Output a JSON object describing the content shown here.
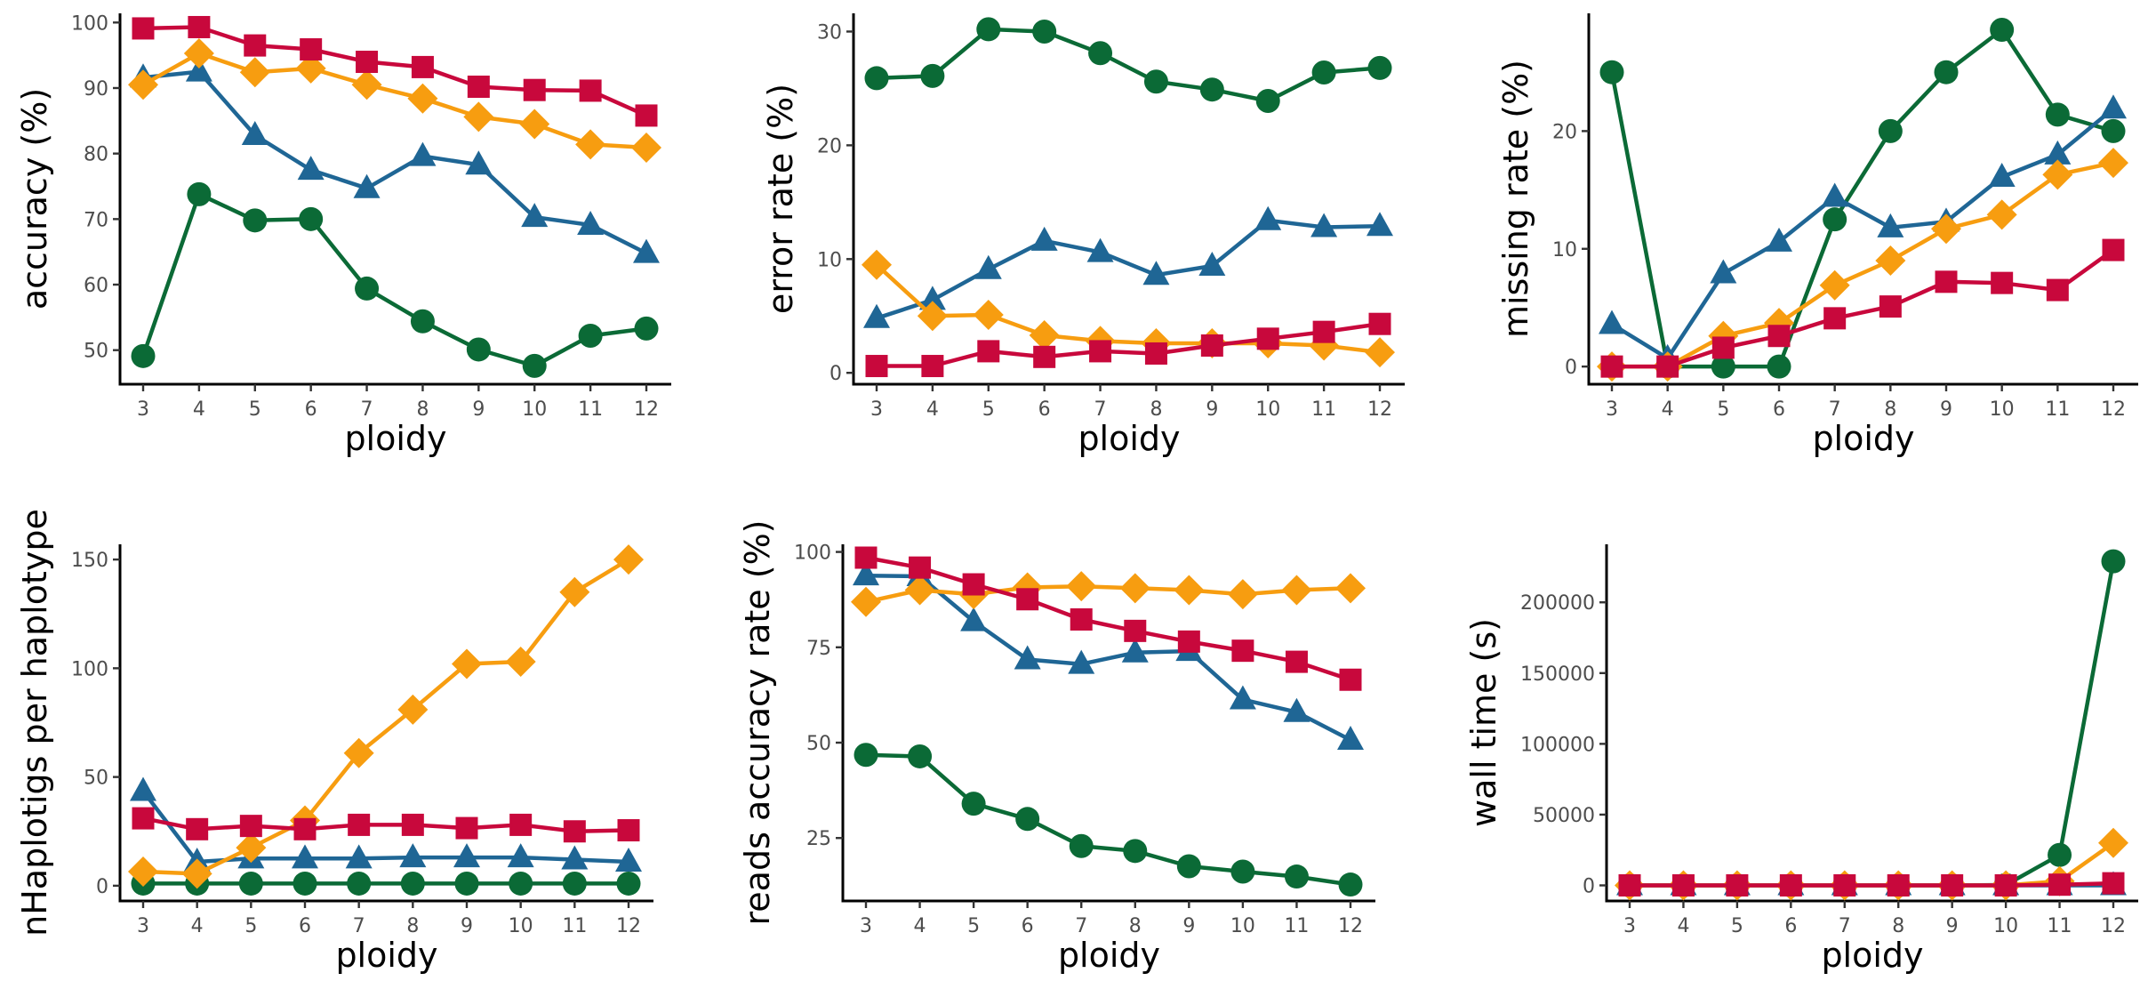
{
  "colors": {
    "green": "#0b6a36",
    "blue": "#1f6695",
    "orange": "#f79d10",
    "red": "#c8083c"
  },
  "chart_data": [
    {
      "type": "line",
      "xlabel": "ploidy",
      "ylabel": "accuracy  (%)",
      "x": [
        3,
        4,
        5,
        6,
        7,
        8,
        9,
        10,
        11,
        12
      ],
      "ylim": [
        44.8,
        101.4
      ],
      "yticks": [
        50,
        60,
        70,
        80,
        90,
        100
      ],
      "series": [
        {
          "color": "green",
          "marker": "circle",
          "values": [
            49.1,
            73.8,
            69.8,
            70.0,
            59.4,
            54.4,
            50.1,
            47.6,
            52.2,
            53.3
          ]
        },
        {
          "color": "blue",
          "marker": "triangle",
          "values": [
            91.6,
            92.5,
            82.8,
            77.5,
            74.7,
            79.6,
            78.3,
            70.3,
            69.1,
            64.8
          ]
        },
        {
          "color": "orange",
          "marker": "diamond",
          "values": [
            90.5,
            95.3,
            92.4,
            93.0,
            90.5,
            88.4,
            85.6,
            84.5,
            81.4,
            80.9
          ]
        },
        {
          "color": "red",
          "marker": "square",
          "values": [
            99.1,
            99.3,
            96.5,
            95.9,
            94.0,
            93.2,
            90.2,
            89.7,
            89.6,
            85.8
          ]
        }
      ]
    },
    {
      "type": "line",
      "xlabel": "ploidy",
      "ylabel": "error rate  (%)",
      "x": [
        3,
        4,
        5,
        6,
        7,
        8,
        9,
        10,
        11,
        12
      ],
      "ylim": [
        -1.0,
        31.6
      ],
      "yticks": [
        0,
        10,
        20,
        30
      ],
      "series": [
        {
          "color": "green",
          "marker": "circle",
          "values": [
            25.9,
            26.1,
            30.2,
            30.0,
            28.1,
            25.6,
            24.9,
            23.9,
            26.4,
            26.8
          ]
        },
        {
          "color": "blue",
          "marker": "triangle",
          "values": [
            4.8,
            6.4,
            9.1,
            11.6,
            10.6,
            8.6,
            9.4,
            13.4,
            12.8,
            12.9
          ]
        },
        {
          "color": "orange",
          "marker": "diamond",
          "values": [
            9.5,
            5.0,
            5.1,
            3.3,
            2.8,
            2.6,
            2.6,
            2.6,
            2.4,
            1.8
          ]
        },
        {
          "color": "red",
          "marker": "square",
          "values": [
            0.6,
            0.6,
            1.9,
            1.4,
            1.9,
            1.7,
            2.4,
            3.0,
            3.6,
            4.3
          ]
        }
      ]
    },
    {
      "type": "line",
      "xlabel": "ploidy",
      "ylabel": "missing rate  (%)",
      "x": [
        3,
        4,
        5,
        6,
        7,
        8,
        9,
        10,
        11,
        12
      ],
      "ylim": [
        -1.5,
        30.0
      ],
      "yticks": [
        0,
        10,
        20
      ],
      "series": [
        {
          "color": "green",
          "marker": "circle",
          "values": [
            25.0,
            0.0,
            0.0,
            0.0,
            12.5,
            20.0,
            25.0,
            28.6,
            21.4,
            20.0
          ]
        },
        {
          "color": "blue",
          "marker": "triangle",
          "values": [
            3.6,
            0.7,
            7.9,
            10.6,
            14.4,
            11.8,
            12.3,
            16.1,
            18.0,
            21.9
          ]
        },
        {
          "color": "orange",
          "marker": "diamond",
          "values": [
            0.0,
            0.0,
            2.6,
            3.7,
            6.9,
            9.0,
            11.7,
            12.9,
            16.3,
            17.3
          ]
        },
        {
          "color": "red",
          "marker": "square",
          "values": [
            0.0,
            0.0,
            1.6,
            2.6,
            4.1,
            5.1,
            7.2,
            7.1,
            6.5,
            9.9
          ]
        }
      ]
    },
    {
      "type": "line",
      "xlabel": "ploidy",
      "ylabel": "nHaplotigs per haplotype",
      "x": [
        3,
        4,
        5,
        6,
        7,
        8,
        9,
        10,
        11,
        12
      ],
      "ylim": [
        -7.0,
        157.0
      ],
      "yticks": [
        0,
        50,
        100,
        150
      ],
      "series": [
        {
          "color": "green",
          "marker": "circle",
          "values": [
            1,
            1,
            1,
            1,
            1,
            1,
            1,
            1,
            1,
            1
          ]
        },
        {
          "color": "blue",
          "marker": "triangle",
          "values": [
            43.5,
            11.0,
            12.5,
            12.5,
            12.5,
            13.0,
            13.0,
            13.0,
            12.0,
            11.0
          ]
        },
        {
          "color": "orange",
          "marker": "diamond",
          "values": [
            6.5,
            5.5,
            17.5,
            30.0,
            61.0,
            81.0,
            102.0,
            103.0,
            135.0,
            150.0
          ]
        },
        {
          "color": "red",
          "marker": "square",
          "values": [
            31.0,
            26.0,
            27.5,
            26.0,
            28.0,
            28.0,
            26.5,
            28.0,
            25.0,
            25.5
          ]
        }
      ]
    },
    {
      "type": "line",
      "xlabel": "ploidy",
      "ylabel": "reads accuracy rate  (%)",
      "x": [
        3,
        4,
        5,
        6,
        7,
        8,
        9,
        10,
        11,
        12
      ],
      "ylim": [
        8.5,
        102.0
      ],
      "yticks": [
        25,
        50,
        75,
        100
      ],
      "series": [
        {
          "color": "green",
          "marker": "circle",
          "values": [
            46.8,
            46.4,
            34.0,
            30.0,
            22.9,
            21.6,
            17.6,
            16.2,
            14.9,
            12.8
          ]
        },
        {
          "color": "blue",
          "marker": "triangle",
          "values": [
            93.8,
            93.6,
            81.8,
            71.8,
            70.6,
            73.6,
            74.0,
            61.3,
            58.0,
            50.7
          ]
        },
        {
          "color": "orange",
          "marker": "diamond",
          "values": [
            86.9,
            90.0,
            88.9,
            90.7,
            91.0,
            90.5,
            90.0,
            88.9,
            90.0,
            90.5
          ]
        },
        {
          "color": "red",
          "marker": "square",
          "values": [
            98.5,
            95.9,
            91.5,
            87.6,
            82.3,
            79.3,
            76.5,
            74.1,
            71.2,
            66.5
          ]
        }
      ]
    },
    {
      "type": "line",
      "xlabel": "ploidy",
      "ylabel": "wall time (s)",
      "x": [
        3,
        4,
        5,
        6,
        7,
        8,
        9,
        10,
        11,
        12
      ],
      "ylim": [
        -11000,
        241000
      ],
      "yticks": [
        0,
        50000,
        100000,
        150000,
        200000
      ],
      "series": [
        {
          "color": "green",
          "marker": "circle",
          "values": [
            0,
            0,
            0,
            0,
            0,
            0,
            0,
            300,
            21500,
            229000
          ]
        },
        {
          "color": "blue",
          "marker": "triangle",
          "values": [
            0,
            0,
            0,
            0,
            0,
            0,
            0,
            0,
            0,
            0
          ]
        },
        {
          "color": "orange",
          "marker": "diamond",
          "values": [
            0,
            0,
            0,
            0,
            0,
            0,
            0,
            0,
            3000,
            30000
          ]
        },
        {
          "color": "red",
          "marker": "square",
          "values": [
            0,
            0,
            0,
            0,
            0,
            0,
            0,
            0,
            500,
            1500
          ]
        }
      ]
    }
  ]
}
